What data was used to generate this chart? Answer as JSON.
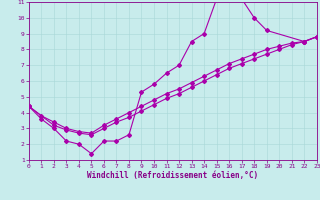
{
  "xlabel": "Windchill (Refroidissement éolien,°C)",
  "bg_color": "#c8ecec",
  "line_color": "#aa00aa",
  "text_color": "#880088",
  "xlim": [
    0,
    23
  ],
  "ylim": [
    1,
    11
  ],
  "xticks": [
    0,
    1,
    2,
    3,
    4,
    5,
    6,
    7,
    8,
    9,
    10,
    11,
    12,
    13,
    14,
    15,
    16,
    17,
    18,
    19,
    20,
    21,
    22,
    23
  ],
  "yticks": [
    1,
    2,
    3,
    4,
    5,
    6,
    7,
    8,
    9,
    10,
    11
  ],
  "curve1_x": [
    0,
    1,
    2,
    3,
    4,
    5,
    6,
    7,
    8,
    9,
    10,
    11,
    12,
    13,
    14,
    15,
    16,
    17,
    18,
    19,
    22,
    23
  ],
  "curve1_y": [
    4.4,
    3.6,
    3.0,
    2.2,
    2.0,
    1.4,
    2.2,
    2.2,
    2.6,
    5.3,
    5.8,
    6.5,
    7.0,
    8.5,
    9.0,
    11.2,
    11.3,
    11.2,
    10.0,
    9.2,
    8.5,
    8.8
  ],
  "curve2_x": [
    0,
    1,
    2,
    3,
    4,
    5,
    6,
    7,
    8,
    9,
    10,
    11,
    12,
    13,
    14,
    15,
    16,
    17,
    18,
    19,
    20,
    21,
    22,
    23
  ],
  "curve2_y": [
    4.4,
    3.8,
    3.4,
    3.0,
    2.8,
    2.7,
    3.2,
    3.6,
    4.0,
    4.4,
    4.8,
    5.2,
    5.5,
    5.9,
    6.3,
    6.7,
    7.1,
    7.4,
    7.7,
    8.0,
    8.2,
    8.4,
    8.5,
    8.8
  ],
  "curve3_x": [
    0,
    2,
    3,
    4,
    5,
    6,
    7,
    8,
    9,
    10,
    11,
    12,
    13,
    14,
    15,
    16,
    17,
    18,
    19,
    20,
    21,
    22,
    23
  ],
  "curve3_y": [
    4.4,
    3.2,
    2.9,
    2.7,
    2.6,
    3.0,
    3.4,
    3.7,
    4.1,
    4.5,
    4.9,
    5.2,
    5.6,
    6.0,
    6.4,
    6.8,
    7.1,
    7.4,
    7.7,
    8.0,
    8.3,
    8.5,
    8.8
  ]
}
